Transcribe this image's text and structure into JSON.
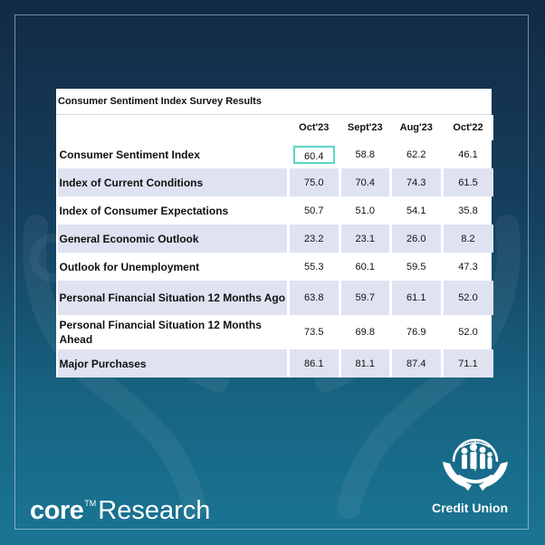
{
  "table": {
    "title": "Consumer Sentiment Index Survey Results",
    "columns": [
      "Oct'23",
      "Sept'23",
      "Aug'23",
      "Oct'22"
    ],
    "rows": [
      {
        "label": "Consumer Sentiment Index",
        "values": [
          "60.4",
          "58.8",
          "62.2",
          "46.1"
        ]
      },
      {
        "label": "Index of Current Conditions",
        "values": [
          "75.0",
          "70.4",
          "74.3",
          "61.5"
        ]
      },
      {
        "label": "Index of Consumer Expectations",
        "values": [
          "50.7",
          "51.0",
          "54.1",
          "35.8"
        ]
      },
      {
        "label": "General Economic Outlook",
        "values": [
          "23.2",
          "23.1",
          "26.0",
          "8.2"
        ]
      },
      {
        "label": "Outlook for Unemployment",
        "values": [
          "55.3",
          "60.1",
          "59.5",
          "47.3"
        ]
      },
      {
        "label": "Personal Financial Situation 12 Months Ago",
        "values": [
          "63.8",
          "59.7",
          "61.1",
          "52.0"
        ]
      },
      {
        "label": "Personal Financial Situation 12 Months Ahead",
        "values": [
          "73.5",
          "69.8",
          "76.9",
          "52.0"
        ]
      },
      {
        "label": "Major Purchases",
        "values": [
          "86.1",
          "81.1",
          "87.4",
          "71.1"
        ]
      }
    ],
    "highlight_color": "#59d6c6",
    "alt_row_color": "#dfe2f1"
  },
  "branding": {
    "core": "core",
    "trademark": "TM",
    "research": "Research",
    "credit_union": "Credit Union",
    "logo_icon": "hands-family-icon"
  },
  "colors": {
    "background_top": "#122a44",
    "background_bottom": "#1a7594"
  }
}
